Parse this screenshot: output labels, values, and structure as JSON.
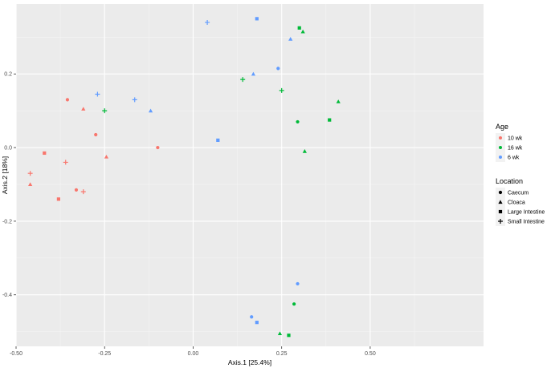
{
  "chart_data": {
    "type": "scatter",
    "title": "",
    "xlabel": "Axis.1   [25.4%]",
    "ylabel": "Axis.2   [18%]",
    "xlim": [
      -0.5,
      0.82
    ],
    "ylim": [
      -0.54,
      0.39
    ],
    "xticks": [
      -0.5,
      -0.25,
      0.0,
      0.25,
      0.5
    ],
    "xtick_labels": [
      "-0.50",
      "-0.25",
      "0.00",
      "0.25",
      "0.50"
    ],
    "yticks": [
      -0.4,
      -0.2,
      0.0,
      0.2
    ],
    "ytick_labels": [
      "-0.4",
      "-0.2",
      "0.0",
      "0.2"
    ],
    "grid": true,
    "panel_background": "#ebebeb",
    "legend_position": "right",
    "legends": {
      "color": {
        "title": "Age",
        "entries": [
          {
            "label": "10 wk",
            "color": "#f8766d"
          },
          {
            "label": "16 wk",
            "color": "#00ba38"
          },
          {
            "label": "6 wk",
            "color": "#619cff"
          }
        ]
      },
      "shape": {
        "title": "Location",
        "entries": [
          {
            "label": "Caecum",
            "shape": "circle"
          },
          {
            "label": "Cloaca",
            "shape": "triangle"
          },
          {
            "label": "Large Intestine",
            "shape": "square"
          },
          {
            "label": "Small Intestine",
            "shape": "plus"
          }
        ]
      }
    },
    "points": [
      {
        "x": 0.04,
        "y": 0.34,
        "age": "6 wk",
        "location": "Small Intestine"
      },
      {
        "x": 0.18,
        "y": 0.35,
        "age": "6 wk",
        "location": "Large Intestine"
      },
      {
        "x": 0.3,
        "y": 0.325,
        "age": "16 wk",
        "location": "Large Intestine"
      },
      {
        "x": 0.31,
        "y": 0.315,
        "age": "16 wk",
        "location": "Cloaca"
      },
      {
        "x": 0.275,
        "y": 0.295,
        "age": "6 wk",
        "location": "Cloaca"
      },
      {
        "x": 0.24,
        "y": 0.215,
        "age": "6 wk",
        "location": "Caecum"
      },
      {
        "x": 0.17,
        "y": 0.2,
        "age": "6 wk",
        "location": "Cloaca"
      },
      {
        "x": 0.14,
        "y": 0.185,
        "age": "16 wk",
        "location": "Small Intestine"
      },
      {
        "x": 0.25,
        "y": 0.155,
        "age": "16 wk",
        "location": "Small Intestine"
      },
      {
        "x": 0.41,
        "y": 0.125,
        "age": "16 wk",
        "location": "Cloaca"
      },
      {
        "x": 0.385,
        "y": 0.075,
        "age": "16 wk",
        "location": "Large Intestine"
      },
      {
        "x": 0.295,
        "y": 0.07,
        "age": "16 wk",
        "location": "Caecum"
      },
      {
        "x": 0.07,
        "y": 0.02,
        "age": "6 wk",
        "location": "Large Intestine"
      },
      {
        "x": 0.315,
        "y": -0.01,
        "age": "16 wk",
        "location": "Cloaca"
      },
      {
        "x": -0.27,
        "y": 0.145,
        "age": "6 wk",
        "location": "Small Intestine"
      },
      {
        "x": -0.165,
        "y": 0.13,
        "age": "6 wk",
        "location": "Small Intestine"
      },
      {
        "x": -0.12,
        "y": 0.1,
        "age": "6 wk",
        "location": "Cloaca"
      },
      {
        "x": -0.25,
        "y": 0.1,
        "age": "16 wk",
        "location": "Small Intestine"
      },
      {
        "x": -0.355,
        "y": 0.13,
        "age": "10 wk",
        "location": "Caecum"
      },
      {
        "x": -0.31,
        "y": 0.105,
        "age": "10 wk",
        "location": "Cloaca"
      },
      {
        "x": -0.275,
        "y": 0.035,
        "age": "10 wk",
        "location": "Caecum"
      },
      {
        "x": -0.1,
        "y": 0.0,
        "age": "10 wk",
        "location": "Caecum"
      },
      {
        "x": -0.245,
        "y": -0.025,
        "age": "10 wk",
        "location": "Cloaca"
      },
      {
        "x": -0.42,
        "y": -0.015,
        "age": "10 wk",
        "location": "Large Intestine"
      },
      {
        "x": -0.36,
        "y": -0.04,
        "age": "10 wk",
        "location": "Small Intestine"
      },
      {
        "x": -0.46,
        "y": -0.07,
        "age": "10 wk",
        "location": "Small Intestine"
      },
      {
        "x": -0.46,
        "y": -0.1,
        "age": "10 wk",
        "location": "Cloaca"
      },
      {
        "x": -0.33,
        "y": -0.115,
        "age": "10 wk",
        "location": "Caecum"
      },
      {
        "x": -0.31,
        "y": -0.12,
        "age": "10 wk",
        "location": "Small Intestine"
      },
      {
        "x": -0.38,
        "y": -0.14,
        "age": "10 wk",
        "location": "Large Intestine"
      },
      {
        "x": 0.295,
        "y": -0.37,
        "age": "6 wk",
        "location": "Caecum"
      },
      {
        "x": 0.285,
        "y": -0.425,
        "age": "16 wk",
        "location": "Caecum"
      },
      {
        "x": 0.165,
        "y": -0.46,
        "age": "6 wk",
        "location": "Caecum"
      },
      {
        "x": 0.18,
        "y": -0.475,
        "age": "6 wk",
        "location": "Large Intestine"
      },
      {
        "x": 0.245,
        "y": -0.505,
        "age": "16 wk",
        "location": "Cloaca"
      },
      {
        "x": 0.27,
        "y": -0.51,
        "age": "16 wk",
        "location": "Large Intestine"
      }
    ]
  }
}
